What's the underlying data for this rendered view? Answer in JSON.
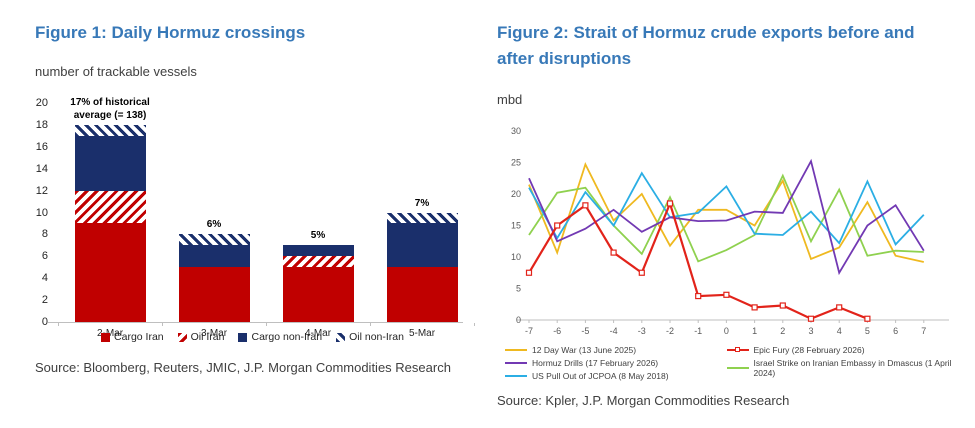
{
  "fig1": {
    "title": "Figure 1: Daily Hormuz crossings",
    "unit": "number of trackable vessels",
    "source": "Source: Bloomberg, Reuters, JMIC, J.P. Morgan Commodities Research"
  },
  "fig2": {
    "title": "Figure 2: Strait of Hormuz crude exports before and after disruptions",
    "unit": "mbd",
    "source": "Source: Kpler, J.P. Morgan Commodities Research"
  },
  "colors": {
    "accent_blue": "#3879B8",
    "bar_red": "#C00000",
    "bar_navy": "#1A2F6B",
    "axis_gray": "#BFBFBF",
    "tick_text": "#595959",
    "text_dark": "#262626"
  },
  "chart_data": [
    {
      "type": "bar",
      "stacked": true,
      "title": "Figure 1: Daily Hormuz crossings",
      "ylabel": "number of trackable vessels",
      "categories": [
        "2-Mar",
        "3-Mar",
        "4-Mar",
        "5-Mar"
      ],
      "series": [
        {
          "name": "Cargo Iran",
          "style": "solid-red",
          "values": [
            9,
            5,
            5,
            5
          ]
        },
        {
          "name": "Oil Iran",
          "style": "hatch-red",
          "values": [
            3,
            0,
            1,
            0
          ]
        },
        {
          "name": "Cargo non-Iran",
          "style": "solid-navy",
          "values": [
            5,
            2,
            1,
            4
          ]
        },
        {
          "name": "Oil non-Iran",
          "style": "hatch-navy",
          "values": [
            1,
            1,
            0,
            1
          ]
        }
      ],
      "totals": [
        18,
        8,
        7,
        10
      ],
      "bar_labels": [
        "17% of historical\naverage (= 138)",
        "6%",
        "5%",
        "7%"
      ],
      "ylim": [
        0,
        20
      ],
      "ytick_step": 2,
      "grid": false,
      "legend_position": "bottom"
    },
    {
      "type": "line",
      "title": "Figure 2: Strait of Hormuz crude exports before and after disruptions",
      "ylabel": "mbd",
      "x": [
        -7,
        -6,
        -5,
        -4,
        -3,
        -2,
        -1,
        0,
        1,
        2,
        3,
        4,
        5,
        6,
        7
      ],
      "ylim": [
        0,
        30
      ],
      "ytick_step": 5,
      "grid": false,
      "legend_position": "bottom",
      "legend_columns": [
        [
          0,
          1,
          2
        ],
        [
          3,
          4
        ]
      ],
      "draw_order": [
        0,
        4,
        2,
        1,
        3
      ],
      "series": [
        {
          "name": "12 Day War (13 June 2025)",
          "color": "#EFB920",
          "marker": "none",
          "values": [
            21.5,
            10.7,
            24.7,
            15.8,
            20,
            11.8,
            17.5,
            17.5,
            15,
            22.1,
            9.7,
            11.5,
            18.7,
            10.2,
            9.2
          ]
        },
        {
          "name": "Hormuz Drills (17 February 2026)",
          "color": "#7239B3",
          "marker": "none",
          "values": [
            22.5,
            12.5,
            14.5,
            17.5,
            14,
            16.3,
            15.7,
            15.8,
            17.2,
            17,
            25.2,
            7.5,
            15,
            18.2,
            11
          ]
        },
        {
          "name": "US Pull Out of JCPOA (8 May 2018)",
          "color": "#2BAEE4",
          "marker": "none",
          "values": [
            21,
            13,
            20.3,
            15,
            23.3,
            16.3,
            17,
            21.2,
            13.7,
            13.5,
            17.2,
            12.2,
            22,
            12,
            16.7
          ]
        },
        {
          "name": "Epic Fury (28 February 2026)",
          "color": "#E2231A",
          "marker": "square",
          "values": [
            7.5,
            15,
            18.2,
            10.7,
            7.5,
            18.5,
            3.8,
            4,
            2,
            2.3,
            0.2,
            2,
            0.2,
            null,
            null
          ]
        },
        {
          "name": "Israel Strike on Iranian Embassy in Dmascus (1 April 2024)",
          "color": "#8FD14F",
          "marker": "none",
          "values": [
            13.5,
            20.2,
            21,
            15,
            10.5,
            19.5,
            9.3,
            11.1,
            13.5,
            22.9,
            12.5,
            20.7,
            10.2,
            11,
            10.8
          ]
        }
      ]
    }
  ]
}
